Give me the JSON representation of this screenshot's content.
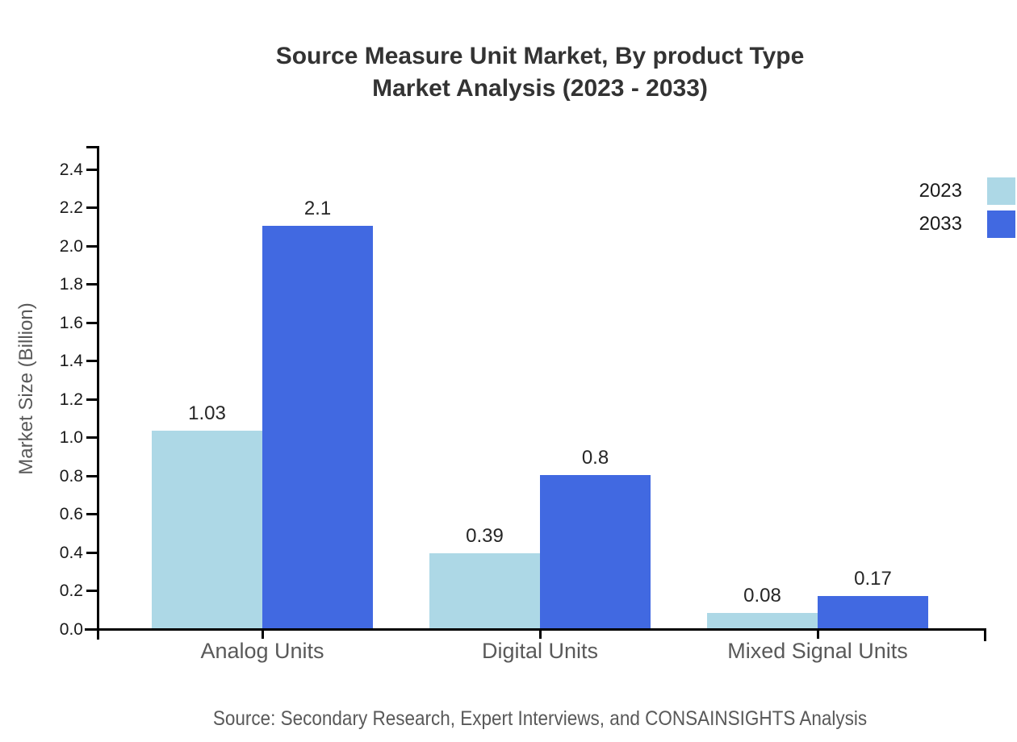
{
  "title": {
    "line1": "Source Measure Unit Market, By product Type",
    "line2": "Market Analysis (2023 - 2033)"
  },
  "source_note": "Source: Secondary Research, Expert Interviews, and CONSAINSIGHTS Analysis",
  "chart_data": {
    "type": "bar",
    "title": "Source Measure Unit Market, By product Type Market Analysis (2023 - 2033)",
    "categories": [
      "Analog Units",
      "Digital Units",
      "Mixed Signal Units"
    ],
    "series": [
      {
        "name": "2023",
        "color": "#add8e6",
        "values": [
          1.03,
          0.39,
          0.08
        ]
      },
      {
        "name": "2033",
        "color": "#4169e1",
        "values": [
          2.1,
          0.8,
          0.17
        ]
      }
    ],
    "xlabel": "",
    "ylabel": "Market Size (Billion)",
    "ylim": [
      0,
      2.4
    ],
    "ytick_step": 0.2,
    "ytick_format_decimals": 1,
    "grid": false,
    "legend_position": "top-right",
    "value_labels": true,
    "bar_value_labels": {
      "Analog Units": {
        "2023": "1.03",
        "2033": "2.1"
      },
      "Digital Units": {
        "2023": "0.39",
        "2033": "0.8"
      },
      "Mixed Signal Units": {
        "2023": "0.08",
        "2033": "0.17"
      }
    },
    "axis_color": "#000000",
    "background_color": "#ffffff"
  }
}
